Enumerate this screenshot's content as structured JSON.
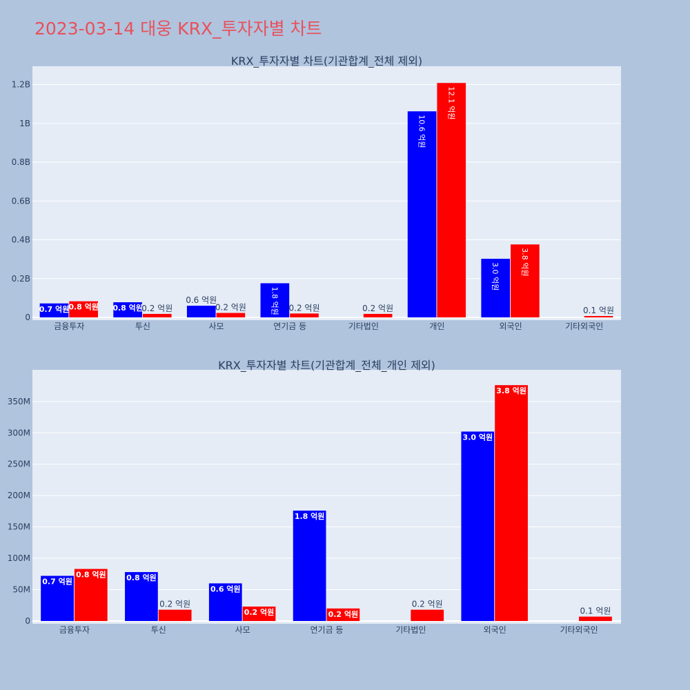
{
  "page_title": "2023-03-14 대웅 KRX_투자자별 차트",
  "colors": {
    "buy": "#0000ff",
    "sell": "#ff0000",
    "plot_bg": "#e5ecf6",
    "page_bg": "#b0c4de",
    "title": "#e8505b"
  },
  "chart_data": [
    {
      "type": "bar",
      "title": "KRX_투자자별 차트(기관합계_전체 제외)",
      "categories": [
        "금융투자",
        "투신",
        "사모",
        "연기금 등",
        "기타법인",
        "개인",
        "외국인",
        "기타외국인"
      ],
      "series": [
        {
          "color": "#0000ff",
          "values": [
            72000000,
            78000000,
            60000000,
            176000000,
            0,
            1062000000,
            302000000,
            0
          ],
          "labels": [
            "0.7 억원",
            "0.8 억원",
            "0.6 억원",
            "1.8 억원",
            "",
            "10.6 억원",
            "3.0 억원",
            ""
          ]
        },
        {
          "color": "#ff0000",
          "values": [
            83000000,
            18000000,
            23000000,
            20000000,
            18000000,
            1208000000,
            376000000,
            7000000
          ],
          "labels": [
            "0.8 억원",
            "0.2 억원",
            "0.2 억원",
            "0.2 억원",
            "0.2 억원",
            "12.1 억원",
            "3.8 억원",
            "0.1 억원"
          ]
        }
      ],
      "yticks": [
        0,
        200000000,
        400000000,
        600000000,
        800000000,
        1000000000,
        1200000000
      ],
      "ytick_labels": [
        "0",
        "0.2B",
        "0.4B",
        "0.6B",
        "0.8B",
        "1B",
        "1.2B"
      ],
      "ylim": [
        0,
        1280000000
      ],
      "grid": true,
      "legend": "none"
    },
    {
      "type": "bar",
      "title": "KRX_투자자별 차트(기관합계_전체_개인 제외)",
      "categories": [
        "금융투자",
        "투신",
        "사모",
        "연기금 등",
        "기타법인",
        "외국인",
        "기타외국인"
      ],
      "series": [
        {
          "color": "#0000ff",
          "values": [
            72000000,
            78000000,
            60000000,
            176000000,
            0,
            302000000,
            0
          ],
          "labels": [
            "0.7 억원",
            "0.8 억원",
            "0.6 억원",
            "1.8 억원",
            "",
            "3.0 억원",
            ""
          ]
        },
        {
          "color": "#ff0000",
          "values": [
            83000000,
            18000000,
            23000000,
            20000000,
            18000000,
            376000000,
            7000000
          ],
          "labels": [
            "0.8 억원",
            "0.2 억원",
            "0.2 억원",
            "0.2 억원",
            "0.2 억원",
            "3.8 억원",
            "0.1 억원"
          ]
        }
      ],
      "yticks": [
        0,
        50000000,
        100000000,
        150000000,
        200000000,
        250000000,
        300000000,
        350000000
      ],
      "ytick_labels": [
        "0",
        "50M",
        "100M",
        "150M",
        "200M",
        "250M",
        "300M",
        "350M"
      ],
      "ylim": [
        0,
        396000000
      ],
      "grid": true,
      "legend": "none"
    }
  ]
}
